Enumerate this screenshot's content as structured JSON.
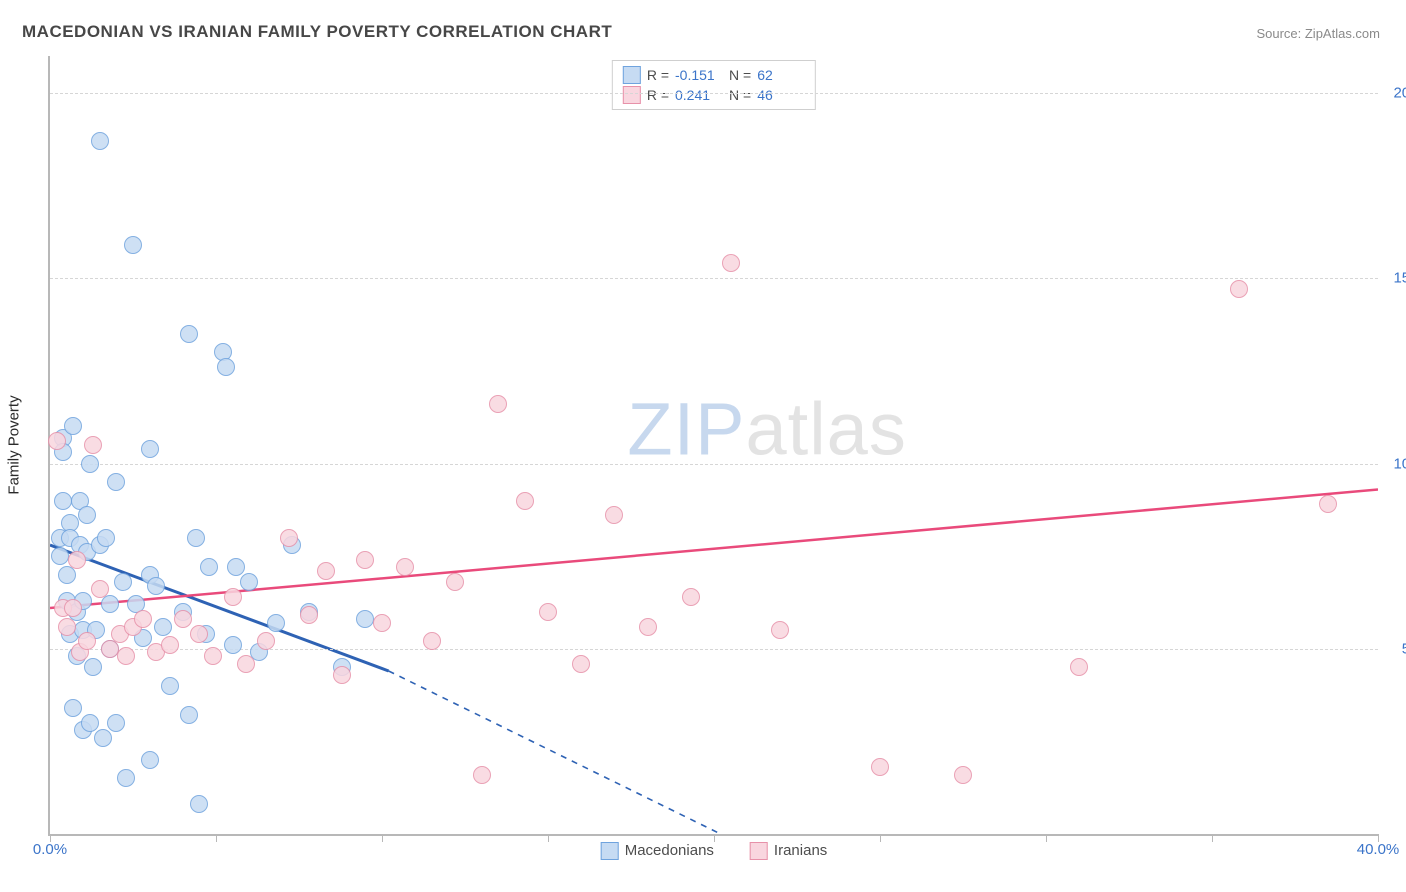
{
  "title": "MACEDONIAN VS IRANIAN FAMILY POVERTY CORRELATION CHART",
  "source_prefix": "Source: ",
  "source_name": "ZipAtlas.com",
  "watermark": {
    "part1": "ZIP",
    "part2": "atlas"
  },
  "chart": {
    "type": "scatter",
    "y_axis_label": "Family Poverty",
    "xlim": [
      0,
      40
    ],
    "ylim": [
      0,
      21
    ],
    "x_tick_step": 5,
    "x_labels": [
      {
        "val": 0,
        "text": "0.0%"
      },
      {
        "val": 40,
        "text": "40.0%"
      }
    ],
    "y_gridlines": [
      5,
      10,
      15,
      20
    ],
    "y_labels": [
      {
        "val": 5,
        "text": "5.0%"
      },
      {
        "val": 10,
        "text": "10.0%"
      },
      {
        "val": 15,
        "text": "15.0%"
      },
      {
        "val": 20,
        "text": "20.0%"
      }
    ],
    "background_color": "#ffffff",
    "grid_color": "#d6d6d6",
    "axis_color": "#b8b8b8",
    "series": [
      {
        "name": "Macedonians",
        "marker_fill": "#c6dbf3",
        "marker_stroke": "#6fa3de",
        "marker_radius": 9,
        "marker_opacity": 0.85,
        "line_color": "#2e62b4",
        "line_width": 3,
        "R": "-0.151",
        "N": "62",
        "trend": {
          "solid": {
            "x1": 0,
            "y1": 7.8,
            "x2": 10.2,
            "y2": 4.4
          },
          "dashed": {
            "x1": 10.2,
            "y1": 4.4,
            "x2": 20.2,
            "y2": 0.0
          }
        },
        "points": [
          [
            0.3,
            8.0
          ],
          [
            0.3,
            7.5
          ],
          [
            0.4,
            10.7
          ],
          [
            0.4,
            10.3
          ],
          [
            0.4,
            9.0
          ],
          [
            0.5,
            7.0
          ],
          [
            0.5,
            6.3
          ],
          [
            0.6,
            8.4
          ],
          [
            0.6,
            5.4
          ],
          [
            0.6,
            8.0
          ],
          [
            0.7,
            11.0
          ],
          [
            0.7,
            3.4
          ],
          [
            0.8,
            6.0
          ],
          [
            0.8,
            4.8
          ],
          [
            0.9,
            7.8
          ],
          [
            0.9,
            9.0
          ],
          [
            1.0,
            6.3
          ],
          [
            1.0,
            5.5
          ],
          [
            1.0,
            2.8
          ],
          [
            1.1,
            8.6
          ],
          [
            1.1,
            7.6
          ],
          [
            1.2,
            10.0
          ],
          [
            1.2,
            3.0
          ],
          [
            1.3,
            4.5
          ],
          [
            1.4,
            5.5
          ],
          [
            1.5,
            18.7
          ],
          [
            1.5,
            7.8
          ],
          [
            1.6,
            2.6
          ],
          [
            1.7,
            8.0
          ],
          [
            1.8,
            5.0
          ],
          [
            1.8,
            6.2
          ],
          [
            2.0,
            3.0
          ],
          [
            2.0,
            9.5
          ],
          [
            2.2,
            6.8
          ],
          [
            2.3,
            1.5
          ],
          [
            2.5,
            15.9
          ],
          [
            2.6,
            6.2
          ],
          [
            2.8,
            5.3
          ],
          [
            3.0,
            7.0
          ],
          [
            3.0,
            10.4
          ],
          [
            3.0,
            2.0
          ],
          [
            3.2,
            6.7
          ],
          [
            3.4,
            5.6
          ],
          [
            3.6,
            4.0
          ],
          [
            4.0,
            6.0
          ],
          [
            4.2,
            13.5
          ],
          [
            4.2,
            3.2
          ],
          [
            4.4,
            8.0
          ],
          [
            4.5,
            0.8
          ],
          [
            4.7,
            5.4
          ],
          [
            4.8,
            7.2
          ],
          [
            5.2,
            13.0
          ],
          [
            5.3,
            12.6
          ],
          [
            5.5,
            5.1
          ],
          [
            5.6,
            7.2
          ],
          [
            6.0,
            6.8
          ],
          [
            6.3,
            4.9
          ],
          [
            6.8,
            5.7
          ],
          [
            7.3,
            7.8
          ],
          [
            7.8,
            6.0
          ],
          [
            8.8,
            4.5
          ],
          [
            9.5,
            5.8
          ]
        ]
      },
      {
        "name": "Iranians",
        "marker_fill": "#f9d6df",
        "marker_stroke": "#e791a9",
        "marker_radius": 9,
        "marker_opacity": 0.85,
        "line_color": "#e94a7b",
        "line_width": 2.5,
        "R": "0.241",
        "N": "46",
        "trend": {
          "solid": {
            "x1": 0,
            "y1": 6.1,
            "x2": 40,
            "y2": 9.3
          }
        },
        "points": [
          [
            0.2,
            10.6
          ],
          [
            0.4,
            6.1
          ],
          [
            0.5,
            5.6
          ],
          [
            0.7,
            6.1
          ],
          [
            0.8,
            7.4
          ],
          [
            0.9,
            4.9
          ],
          [
            1.1,
            5.2
          ],
          [
            1.3,
            10.5
          ],
          [
            1.5,
            6.6
          ],
          [
            1.8,
            5.0
          ],
          [
            2.1,
            5.4
          ],
          [
            2.3,
            4.8
          ],
          [
            2.5,
            5.6
          ],
          [
            2.8,
            5.8
          ],
          [
            3.2,
            4.9
          ],
          [
            3.6,
            5.1
          ],
          [
            4.0,
            5.8
          ],
          [
            4.5,
            5.4
          ],
          [
            4.9,
            4.8
          ],
          [
            5.5,
            6.4
          ],
          [
            5.9,
            4.6
          ],
          [
            6.5,
            5.2
          ],
          [
            7.2,
            8.0
          ],
          [
            7.8,
            5.9
          ],
          [
            8.3,
            7.1
          ],
          [
            8.8,
            4.3
          ],
          [
            9.5,
            7.4
          ],
          [
            10.0,
            5.7
          ],
          [
            10.7,
            7.2
          ],
          [
            11.5,
            5.2
          ],
          [
            12.2,
            6.8
          ],
          [
            13.0,
            1.6
          ],
          [
            13.5,
            11.6
          ],
          [
            14.3,
            9.0
          ],
          [
            15.0,
            6.0
          ],
          [
            16.0,
            4.6
          ],
          [
            17.0,
            8.6
          ],
          [
            18.0,
            5.6
          ],
          [
            19.3,
            6.4
          ],
          [
            20.5,
            15.4
          ],
          [
            22.0,
            5.5
          ],
          [
            25.0,
            1.8
          ],
          [
            27.5,
            1.6
          ],
          [
            31.0,
            4.5
          ],
          [
            35.8,
            14.7
          ],
          [
            38.5,
            8.9
          ]
        ]
      }
    ],
    "legend_rn_labels": {
      "R": "R =",
      "N": "N ="
    },
    "legend_bottom": [
      "Macedonians",
      "Iranians"
    ]
  }
}
